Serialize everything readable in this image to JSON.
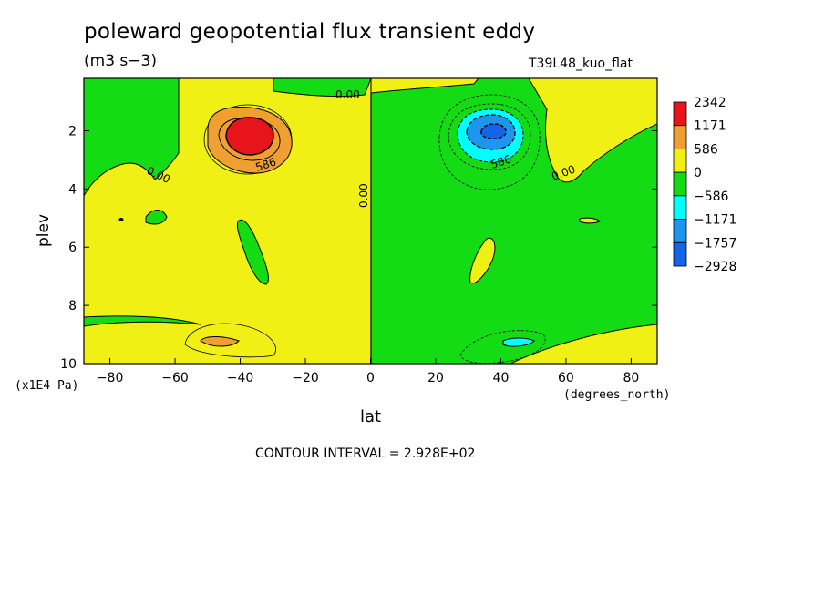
{
  "chart_data": {
    "type": "heatmap",
    "title": "poleward geopotential flux transient eddy",
    "units": "(m3 s−3)",
    "run_label": "T39L48_kuo_flat",
    "xlabel": "lat",
    "xunit": "(degrees_north)",
    "ylabel": "plev",
    "yunit": "(x1E4 Pa)",
    "xlim": [
      -88,
      88
    ],
    "ylim": [
      10,
      0.2
    ],
    "x_ticks": [
      -80,
      -60,
      -40,
      -20,
      0,
      20,
      40,
      60,
      80
    ],
    "x_tick_labels": [
      "−80",
      "−60",
      "−40",
      "−20",
      "0",
      "20",
      "40",
      "60",
      "80"
    ],
    "y_ticks": [
      2,
      4,
      6,
      8,
      10
    ],
    "y_tick_labels": [
      "2",
      "4",
      "6",
      "8",
      "10"
    ],
    "contour_interval_label": "CONTOUR INTERVAL = 2.928E+02",
    "contour_labels": [
      "0.00",
      "0.00",
      "0.00",
      "0.00",
      "586",
      "586"
    ],
    "legend": {
      "labels": [
        "2342",
        "1171",
        "586",
        "0",
        "−586",
        "−1171",
        "−1757",
        "−2928"
      ],
      "colors": [
        "#e8141c",
        "#f0a030",
        "#f0f014",
        "#14dc14",
        "#00ffff",
        "#1e96f0",
        "#1464e6"
      ]
    },
    "colors": {
      "pos_max": "#e8141c",
      "pos_high": "#f0a030",
      "pos": "#f0f014",
      "neg": "#14dc14",
      "neg_mid": "#00ffff",
      "neg_high": "#1e96f0",
      "neg_max": "#1464e6"
    },
    "features": [
      {
        "name": "southern positive maximum",
        "lat": -38,
        "plev": 2.0,
        "value": 2342
      },
      {
        "name": "northern negative minimum",
        "lat": 38,
        "plev": 2.0,
        "value": -2928
      },
      {
        "name": "southern lower positive cell",
        "lat": -46,
        "plev": 9.2,
        "value": 586
      },
      {
        "name": "northern lower negative cell",
        "lat": 40,
        "plev": 9.3,
        "value": -586
      }
    ]
  }
}
